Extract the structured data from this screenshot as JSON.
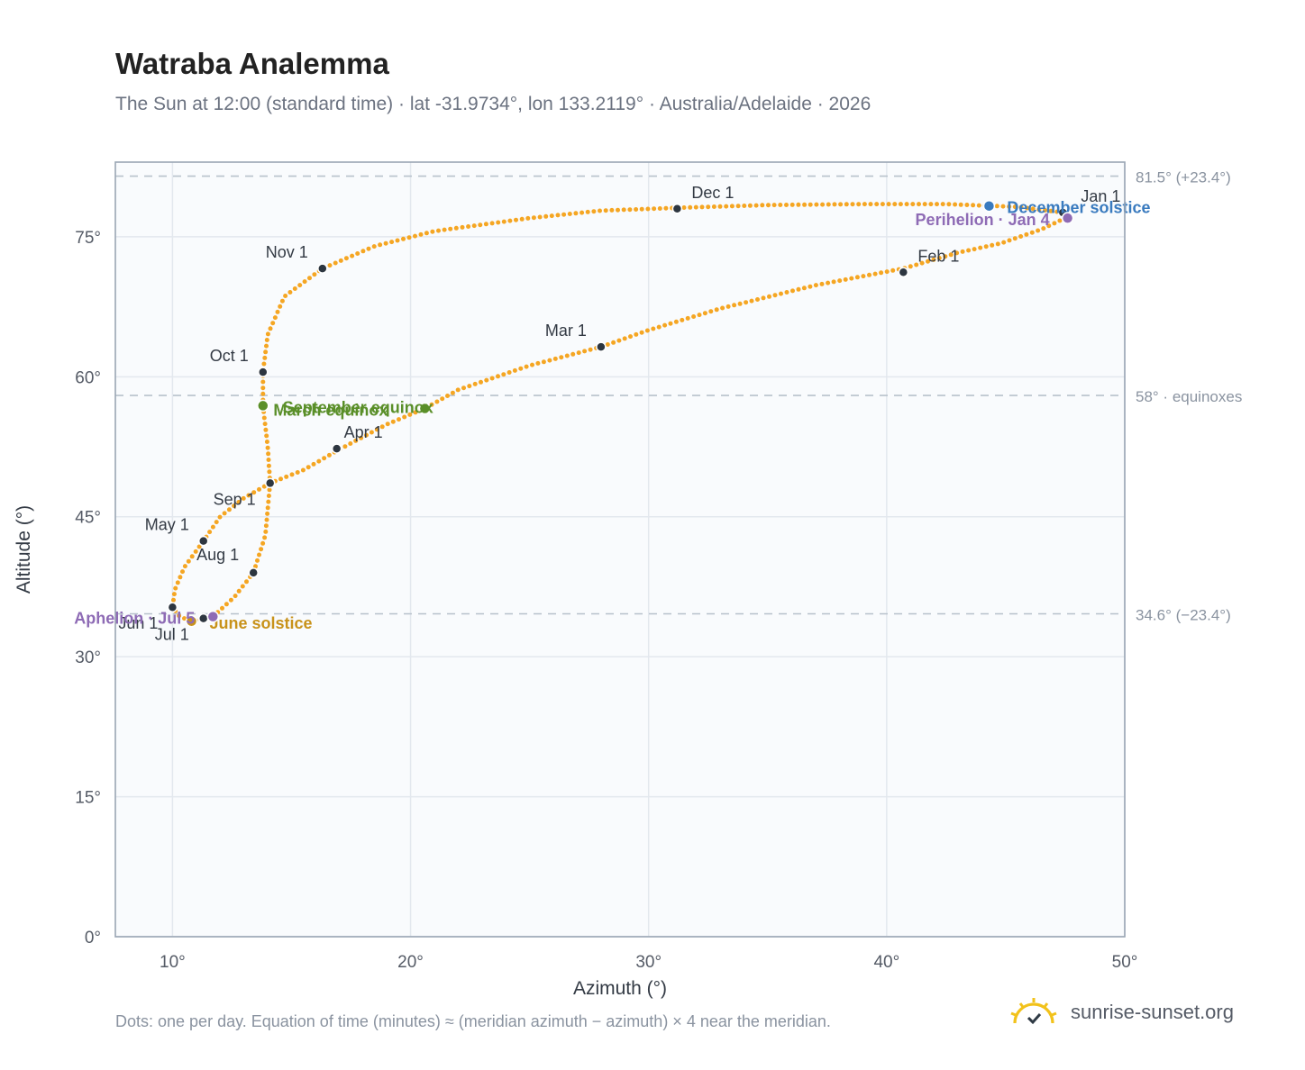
{
  "title": "Watraba Analemma",
  "subtitle": "The Sun at 12:00 (standard time) · lat -31.9734°, lon 133.2119° · Australia/Adelaide · 2026",
  "footnote": "Dots: one per day. Equation of time (minutes) ≈ (meridian azimuth − azimuth) × 4 near the meridian.",
  "brand": {
    "text": "sunrise-sunset.org",
    "icon": "sun-logo-icon"
  },
  "colors": {
    "curve": "#f5a623",
    "month_marker": "#2d3640",
    "equinox": "#5a8f29",
    "june_solstice": "#c8921a",
    "december_solstice": "#3a7bbf",
    "apsis": "#8e6bb5",
    "ref_line": "#b8c2cc",
    "grid": "#e3e8ee",
    "plot_bg": "#f9fbfd"
  },
  "chart_data": {
    "type": "scatter",
    "xlabel": "Azimuth (°)",
    "ylabel": "Altitude (°)",
    "xlim": [
      7.6,
      50
    ],
    "ylim": [
      0,
      83
    ],
    "xticks": [
      10,
      20,
      30,
      40,
      50
    ],
    "yticks": [
      0,
      15,
      30,
      45,
      60,
      75
    ],
    "xtick_labels": [
      "10°",
      "20°",
      "30°",
      "40°",
      "50°"
    ],
    "ytick_labels": [
      "0°",
      "15°",
      "30°",
      "45°",
      "60°",
      "75°"
    ],
    "grid": true,
    "reference_lines": [
      {
        "y": 81.5,
        "label": "81.5° (+23.4°)"
      },
      {
        "y": 58.0,
        "label": "58° · equinoxes"
      },
      {
        "y": 34.6,
        "label": "34.6° (−23.4°)"
      }
    ],
    "series": [
      {
        "name": "",
        "points": [
          [
            47.5,
            77.0
          ],
          [
            46.5,
            75.8
          ],
          [
            44.8,
            74.3
          ],
          [
            43.0,
            73.3
          ],
          [
            40.7,
            71.6
          ],
          [
            37.0,
            69.8
          ],
          [
            33.0,
            67.3
          ],
          [
            30.0,
            65.0
          ],
          [
            28.0,
            63.2
          ],
          [
            25.0,
            61.2
          ],
          [
            22.0,
            58.6
          ],
          [
            20.6,
            56.6
          ],
          [
            19.0,
            54.9
          ],
          [
            17.0,
            52.2
          ],
          [
            15.5,
            50.0
          ],
          [
            14.1,
            48.6
          ],
          [
            13.0,
            47.0
          ],
          [
            12.0,
            45.0
          ],
          [
            11.3,
            42.4
          ],
          [
            10.5,
            39.6
          ],
          [
            10.1,
            37.2
          ],
          [
            10.0,
            35.3
          ],
          [
            10.3,
            34.3
          ],
          [
            10.8,
            33.8
          ],
          [
            11.7,
            34.3
          ],
          [
            12.6,
            36.4
          ],
          [
            13.4,
            39.0
          ],
          [
            13.9,
            43.0
          ],
          [
            14.1,
            48.6
          ],
          [
            14.0,
            52.5
          ],
          [
            13.8,
            56.9
          ],
          [
            13.8,
            60.5
          ],
          [
            14.0,
            64.5
          ],
          [
            14.7,
            68.6
          ],
          [
            16.3,
            71.6
          ],
          [
            18.5,
            74.0
          ],
          [
            21.0,
            75.6
          ],
          [
            25.0,
            77.0
          ],
          [
            28.0,
            77.8
          ],
          [
            31.2,
            78.1
          ],
          [
            35.0,
            78.4
          ],
          [
            39.0,
            78.5
          ],
          [
            42.5,
            78.5
          ],
          [
            45.5,
            78.2
          ],
          [
            47.4,
            77.6
          ],
          [
            47.5,
            77.0
          ]
        ]
      }
    ],
    "month_markers": [
      {
        "label": "Jan 1",
        "x": 47.4,
        "y": 77.6
      },
      {
        "label": "Feb 1",
        "x": 40.7,
        "y": 71.2
      },
      {
        "label": "Mar 1",
        "x": 28.0,
        "y": 63.2
      },
      {
        "label": "Apr 1",
        "x": 16.9,
        "y": 52.3
      },
      {
        "label": "May 1",
        "x": 11.3,
        "y": 42.4
      },
      {
        "label": "Jun 1",
        "x": 10.0,
        "y": 35.3
      },
      {
        "label": "Jul 1",
        "x": 11.3,
        "y": 34.1
      },
      {
        "label": "Aug 1",
        "x": 13.4,
        "y": 39.0
      },
      {
        "label": "Sep 1",
        "x": 14.1,
        "y": 48.6
      },
      {
        "label": "Oct 1",
        "x": 13.8,
        "y": 60.5
      },
      {
        "label": "Nov 1",
        "x": 16.3,
        "y": 71.6
      },
      {
        "label": "Dec 1",
        "x": 31.2,
        "y": 78.0
      }
    ],
    "events": [
      {
        "label": "March equinox",
        "x": 20.6,
        "y": 56.6,
        "kind": "equinox"
      },
      {
        "label": "September equinox",
        "x": 13.8,
        "y": 56.9,
        "kind": "equinox"
      },
      {
        "label": "June solstice",
        "x": 10.8,
        "y": 33.8,
        "kind": "june_solstice"
      },
      {
        "label": "December solstice",
        "x": 44.3,
        "y": 78.3,
        "kind": "december_solstice"
      },
      {
        "label": "Perihelion · Jan 4",
        "x": 47.6,
        "y": 77.0,
        "kind": "apsis"
      },
      {
        "label": "Aphelion · Jul 5",
        "x": 11.7,
        "y": 34.3,
        "kind": "apsis"
      }
    ]
  }
}
